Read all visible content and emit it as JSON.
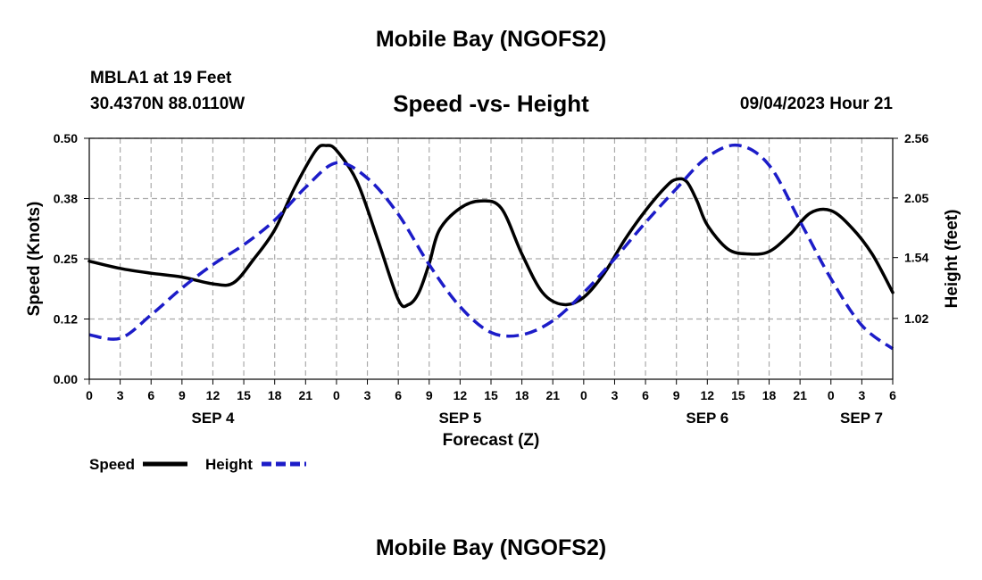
{
  "header": {
    "title": "Mobile Bay (NGOFS2)",
    "station": "MBLA1 at 19 Feet",
    "coords": "30.4370N  88.0110W",
    "subtitle": "Speed -vs- Height",
    "timestamp": "09/04/2023 Hour 21"
  },
  "footer": {
    "title": "Mobile Bay (NGOFS2)"
  },
  "chart_data": {
    "type": "line",
    "xlabel": "Forecast (Z)",
    "ylabel": "Speed (Knots)",
    "ylabel_right": "Height (feet)",
    "x_range_hours": [
      0,
      78
    ],
    "x_tick_labels": [
      "0",
      "3",
      "6",
      "9",
      "12",
      "15",
      "18",
      "21",
      "0",
      "3",
      "6",
      "9",
      "12",
      "15",
      "18",
      "21",
      "0",
      "3",
      "6",
      "9",
      "12",
      "15",
      "18",
      "21",
      "0",
      "3",
      "6"
    ],
    "date_labels": [
      {
        "hour": 12,
        "label": "SEP 4"
      },
      {
        "hour": 36,
        "label": "SEP 5"
      },
      {
        "hour": 60,
        "label": "SEP 6"
      },
      {
        "hour": 78,
        "label": "SEP 7"
      }
    ],
    "y_left": {
      "range": [
        0,
        0.5
      ],
      "ticks": [
        0.0,
        0.125,
        0.25,
        0.375,
        0.5
      ],
      "tick_labels": [
        "0.00",
        "0.12",
        "0.25",
        "0.38",
        "0.50"
      ]
    },
    "y_right": {
      "range": [
        0.5,
        2.56
      ],
      "ticks": [
        1.02,
        1.54,
        2.05,
        2.56
      ],
      "tick_labels": [
        "1.02",
        "1.54",
        "2.05",
        "2.56"
      ]
    },
    "grid": true,
    "series": [
      {
        "name": "Speed",
        "axis": "left",
        "color": "#000000",
        "dash": "solid",
        "x": [
          0,
          3,
          6,
          9,
          12,
          14,
          16,
          18,
          20,
          22,
          23,
          24,
          26,
          28,
          30,
          31,
          32,
          33,
          34,
          36,
          38,
          40,
          42,
          44,
          46,
          48,
          50,
          52,
          54,
          56,
          57,
          58,
          59,
          60,
          62,
          64,
          66,
          68,
          70,
          72,
          74,
          76,
          78
        ],
        "values": [
          0.245,
          0.23,
          0.22,
          0.212,
          0.198,
          0.2,
          0.25,
          0.31,
          0.4,
          0.475,
          0.485,
          0.475,
          0.41,
          0.29,
          0.165,
          0.155,
          0.18,
          0.24,
          0.31,
          0.355,
          0.37,
          0.355,
          0.26,
          0.18,
          0.155,
          0.17,
          0.22,
          0.29,
          0.35,
          0.4,
          0.415,
          0.41,
          0.37,
          0.32,
          0.27,
          0.26,
          0.265,
          0.3,
          0.345,
          0.35,
          0.315,
          0.26,
          0.18
        ]
      },
      {
        "name": "Height",
        "axis": "right",
        "color": "#1c1cc8",
        "dash": "dashed",
        "x": [
          0,
          3,
          6,
          9,
          12,
          15,
          18,
          21,
          24,
          27,
          30,
          33,
          36,
          39,
          42,
          45,
          48,
          51,
          54,
          57,
          60,
          63,
          66,
          69,
          72,
          75,
          78
        ],
        "values": [
          0.88,
          0.85,
          1.05,
          1.28,
          1.48,
          1.65,
          1.86,
          2.14,
          2.35,
          2.22,
          1.91,
          1.48,
          1.12,
          0.9,
          0.88,
          1.0,
          1.24,
          1.53,
          1.84,
          2.13,
          2.4,
          2.5,
          2.33,
          1.85,
          1.36,
          0.96,
          0.76
        ]
      }
    ],
    "legend": [
      {
        "label": "Speed",
        "color": "#000000"
      },
      {
        "label": "Height",
        "color": "#1c1cc8"
      }
    ]
  }
}
